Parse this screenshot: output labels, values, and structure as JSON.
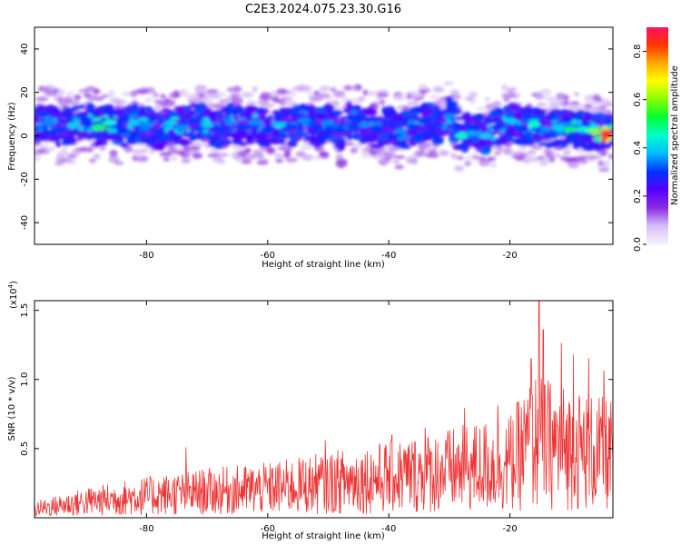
{
  "title": "C2E3.2024.075.23.30.G16",
  "colors": {
    "axis": "#000000",
    "snr_line": "#ee3333"
  },
  "chart_data": [
    {
      "type": "heatmap",
      "xlabel": "Height of straight line (km)",
      "ylabel": "Frequency (Hz)",
      "xlim": [
        -98.5,
        -3.0
      ],
      "ylim": [
        -50,
        50
      ],
      "x_ticks": [
        -80,
        -60,
        -40,
        -20
      ],
      "y_ticks": [
        -40,
        -20,
        0,
        20,
        40
      ],
      "colorbar": {
        "label": "Normalized spectral amplitude",
        "range": [
          0.0,
          0.9
        ],
        "ticks": [
          0.0,
          0.2,
          0.4,
          0.6,
          0.8
        ],
        "colors": [
          "#f7f0ff",
          "#d6bff5",
          "#8a2be2",
          "#5500ff",
          "#0033ff",
          "#00bbff",
          "#00ffcc",
          "#00ff33",
          "#88ff00",
          "#ffff00",
          "#ffaa00",
          "#ff3300",
          "#ff1166"
        ]
      },
      "blobs": [
        {
          "x": -96,
          "f": 6,
          "a": 0.35
        },
        {
          "x": -94,
          "f": 3,
          "a": 0.3
        },
        {
          "x": -92,
          "f": 5,
          "a": 0.4
        },
        {
          "x": -90,
          "f": 7,
          "a": 0.3
        },
        {
          "x": -88,
          "f": 4,
          "a": 0.5
        },
        {
          "x": -86,
          "f": 6,
          "a": 0.45
        },
        {
          "x": -84,
          "f": 3,
          "a": 0.3
        },
        {
          "x": -82,
          "f": 6,
          "a": 0.4
        },
        {
          "x": -80,
          "f": 5,
          "a": 0.35
        },
        {
          "x": -78,
          "f": 2,
          "a": 0.3
        },
        {
          "x": -76,
          "f": 6,
          "a": 0.4
        },
        {
          "x": -74,
          "f": 4,
          "a": 0.35
        },
        {
          "x": -72,
          "f": 7,
          "a": 0.3
        },
        {
          "x": -70,
          "f": 5,
          "a": 0.4
        },
        {
          "x": -68,
          "f": 3,
          "a": 0.3
        },
        {
          "x": -66,
          "f": 6,
          "a": 0.35
        },
        {
          "x": -64,
          "f": 4,
          "a": 0.3
        },
        {
          "x": -62,
          "f": 6,
          "a": 0.35
        },
        {
          "x": -60,
          "f": 3,
          "a": 0.3
        },
        {
          "x": -58,
          "f": 5,
          "a": 0.4
        },
        {
          "x": -56,
          "f": 4,
          "a": 0.3
        },
        {
          "x": -54,
          "f": 7,
          "a": 0.35
        },
        {
          "x": -52,
          "f": 4,
          "a": 0.3
        },
        {
          "x": -50,
          "f": 6,
          "a": 0.35
        },
        {
          "x": -48,
          "f": 2,
          "a": 0.3
        },
        {
          "x": -46,
          "f": 8,
          "a": 0.3
        },
        {
          "x": -44,
          "f": 5,
          "a": 0.35
        },
        {
          "x": -42,
          "f": 3,
          "a": 0.3
        },
        {
          "x": -40,
          "f": 6,
          "a": 0.3
        },
        {
          "x": -38,
          "f": 2,
          "a": 0.35
        },
        {
          "x": -36,
          "f": 4,
          "a": 0.3
        },
        {
          "x": -34,
          "f": 7,
          "a": 0.3
        },
        {
          "x": -32,
          "f": 5,
          "a": 0.3
        },
        {
          "x": -30,
          "f": 9,
          "a": 0.35
        },
        {
          "x": -28,
          "f": 0,
          "a": 0.45
        },
        {
          "x": -26,
          "f": 4,
          "a": 0.3
        },
        {
          "x": -24,
          "f": 0,
          "a": 0.4
        },
        {
          "x": -22,
          "f": 4,
          "a": 0.3
        },
        {
          "x": -20,
          "f": 7,
          "a": 0.4
        },
        {
          "x": -18,
          "f": 3,
          "a": 0.3
        },
        {
          "x": -16,
          "f": 5,
          "a": 0.45
        },
        {
          "x": -14,
          "f": 3,
          "a": 0.35
        },
        {
          "x": -12,
          "f": 4,
          "a": 0.4
        },
        {
          "x": -10,
          "f": 3,
          "a": 0.5
        },
        {
          "x": -8,
          "f": 3,
          "a": 0.45
        },
        {
          "x": -6,
          "f": 2,
          "a": 0.6
        },
        {
          "x": -4,
          "f": 1,
          "a": 0.85
        }
      ]
    },
    {
      "type": "line",
      "xlabel": "Height of straight line (km)",
      "ylabel": "SNR (10 * v/v)",
      "y_multiplier": "(x10",
      "y_multiplier_exp": "4",
      "xlim": [
        -98.5,
        -3.0
      ],
      "ylim": [
        0.0,
        1.57
      ],
      "x_ticks": [
        -80,
        -60,
        -40,
        -20
      ],
      "y_ticks": [
        0.5,
        1.0,
        1.5
      ],
      "envelope": [
        {
          "x": -98.5,
          "y": 0.12
        },
        {
          "x": -90,
          "y": 0.22
        },
        {
          "x": -80,
          "y": 0.3
        },
        {
          "x": -70,
          "y": 0.36
        },
        {
          "x": -60,
          "y": 0.4
        },
        {
          "x": -50,
          "y": 0.48
        },
        {
          "x": -40,
          "y": 0.56
        },
        {
          "x": -30,
          "y": 0.65
        },
        {
          "x": -20,
          "y": 0.75
        },
        {
          "x": -16,
          "y": 1.05
        },
        {
          "x": -10,
          "y": 0.95
        },
        {
          "x": -3,
          "y": 0.85
        }
      ],
      "peaks": [
        {
          "x": -73.5,
          "y": 0.51
        },
        {
          "x": -50.5,
          "y": 0.56
        },
        {
          "x": -39.5,
          "y": 0.6
        },
        {
          "x": -34,
          "y": 0.65
        },
        {
          "x": -27.5,
          "y": 0.79
        },
        {
          "x": -22,
          "y": 0.81
        },
        {
          "x": -16.5,
          "y": 1.15
        },
        {
          "x": -15.2,
          "y": 1.57
        },
        {
          "x": -14.5,
          "y": 1.36
        },
        {
          "x": -11.5,
          "y": 1.26
        },
        {
          "x": -9.5,
          "y": 1.18
        },
        {
          "x": -7,
          "y": 1.15
        },
        {
          "x": -4.5,
          "y": 1.06
        }
      ]
    }
  ]
}
